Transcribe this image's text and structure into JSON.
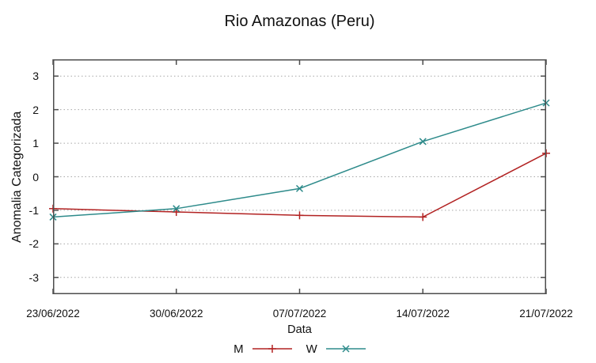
{
  "title": "Rio Amazonas (Peru)",
  "chart_data": {
    "type": "line",
    "title": "Rio Amazonas (Peru)",
    "xlabel": "Data",
    "ylabel": "Anomalia Categorizada",
    "categories": [
      "23/06/2022",
      "30/06/2022",
      "07/07/2022",
      "14/07/2022",
      "21/07/2022"
    ],
    "series": [
      {
        "name": "M",
        "color": "#b22222",
        "marker": "plus",
        "values": [
          -0.95,
          -1.05,
          -1.15,
          -1.2,
          0.7
        ]
      },
      {
        "name": "W",
        "color": "#2e8b8b",
        "marker": "cross",
        "values": [
          -1.2,
          -0.95,
          -0.35,
          1.05,
          2.2
        ]
      }
    ],
    "ylim": [
      -3.5,
      3.5
    ],
    "yticks": [
      -3,
      -2,
      -1,
      0,
      1,
      2,
      3
    ],
    "grid": "horizontal-dotted",
    "legend_position": "below-x-axis"
  },
  "colors": {
    "border": "#4d4d4d",
    "grid": "#a6a6a6",
    "text": "#111111",
    "series_m": "#b22222",
    "series_w": "#2e8b8b"
  }
}
